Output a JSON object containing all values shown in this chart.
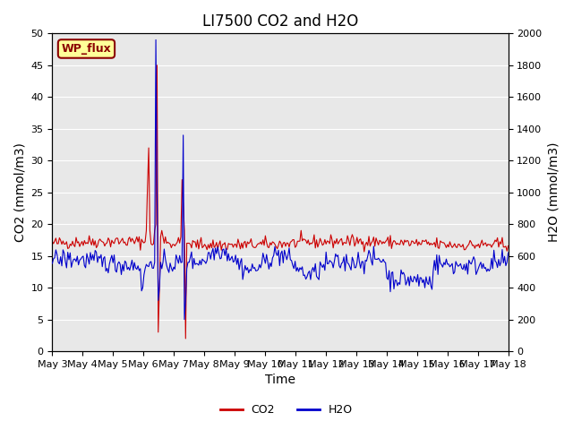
{
  "title": "LI7500 CO2 and H2O",
  "xlabel": "Time",
  "ylabel_left": "CO2 (mmol/m3)",
  "ylabel_right": "H2O (mmol/m3)",
  "ylim_left": [
    0,
    50
  ],
  "ylim_right": [
    0,
    2000
  ],
  "yticks_left": [
    0,
    5,
    10,
    15,
    20,
    25,
    30,
    35,
    40,
    45,
    50
  ],
  "yticks_right": [
    0,
    200,
    400,
    600,
    800,
    1000,
    1200,
    1400,
    1600,
    1800,
    2000
  ],
  "xtick_labels": [
    "May 3",
    "May 4",
    "May 5",
    "May 6",
    "May 7",
    "May 8",
    "May 9",
    "May 10",
    "May 11",
    "May 12",
    "May 13",
    "May 14",
    "May 15",
    "May 16",
    "May 17",
    "May 18"
  ],
  "co2_color": "#cc0000",
  "h2o_color": "#0000cc",
  "bg_color": "#e8e8e8",
  "fig_bg_color": "#ffffff",
  "label_tag": "WP_flux",
  "label_tag_bg": "#ffff99",
  "label_tag_border": "#8b0000",
  "legend_co2": "CO2",
  "legend_h2o": "H2O",
  "title_fontsize": 12,
  "axis_fontsize": 10,
  "tick_fontsize": 8
}
